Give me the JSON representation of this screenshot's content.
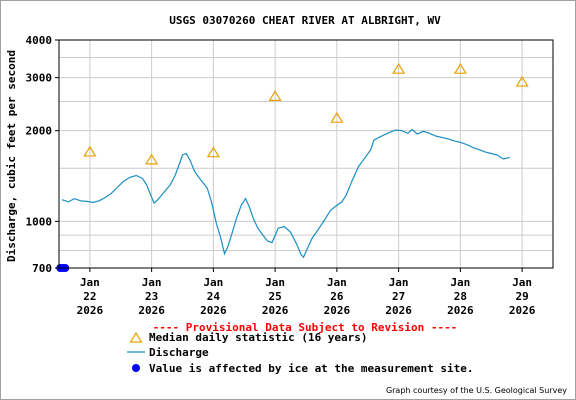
{
  "chart_data": {
    "type": "line",
    "title": "USGS 03070260 CHEAT RIVER AT ALBRIGHT, WV",
    "ylabel": "Discharge, cubic feet per second",
    "xlabel": "",
    "yscale": "log",
    "ylim": [
      700,
      4000
    ],
    "xlim": [
      21.5,
      29.5
    ],
    "grid": true,
    "y_ticks": [
      {
        "value": 700,
        "label": "700"
      },
      {
        "value": 1000,
        "label": "1000"
      },
      {
        "value": 2000,
        "label": "2000"
      },
      {
        "value": 3000,
        "label": "3000"
      },
      {
        "value": 4000,
        "label": "4000"
      }
    ],
    "y_minor_gridlines": [
      800,
      900,
      1000,
      1500,
      2000,
      2500,
      3000,
      3500
    ],
    "x_ticks": [
      {
        "value": 22,
        "month": "Jan",
        "day": "22",
        "year": "2026"
      },
      {
        "value": 23,
        "month": "Jan",
        "day": "23",
        "year": "2026"
      },
      {
        "value": 24,
        "month": "Jan",
        "day": "24",
        "year": "2026"
      },
      {
        "value": 25,
        "month": "Jan",
        "day": "25",
        "year": "2026"
      },
      {
        "value": 26,
        "month": "Jan",
        "day": "26",
        "year": "2026"
      },
      {
        "value": 27,
        "month": "Jan",
        "day": "27",
        "year": "2026"
      },
      {
        "value": 28,
        "month": "Jan",
        "day": "28",
        "year": "2026"
      },
      {
        "value": 29,
        "month": "Jan",
        "day": "29",
        "year": "2026"
      }
    ],
    "series": [
      {
        "name": "Median daily statistic (16 years)",
        "kind": "marker",
        "color": "#e8a000",
        "points": [
          {
            "x": 22.0,
            "y": 1700
          },
          {
            "x": 23.0,
            "y": 1600
          },
          {
            "x": 24.0,
            "y": 1690
          },
          {
            "x": 25.0,
            "y": 2600
          },
          {
            "x": 26.0,
            "y": 2200
          },
          {
            "x": 27.0,
            "y": 3200
          },
          {
            "x": 28.0,
            "y": 3200
          },
          {
            "x": 29.0,
            "y": 2900
          }
        ]
      },
      {
        "name": "Discharge",
        "kind": "line",
        "color": "#1a8ec2",
        "points": [
          {
            "x": 21.55,
            "y": 1180
          },
          {
            "x": 21.65,
            "y": 1160
          },
          {
            "x": 21.75,
            "y": 1190
          },
          {
            "x": 21.85,
            "y": 1170
          },
          {
            "x": 21.95,
            "y": 1165
          },
          {
            "x": 22.05,
            "y": 1155
          },
          {
            "x": 22.15,
            "y": 1170
          },
          {
            "x": 22.25,
            "y": 1200
          },
          {
            "x": 22.35,
            "y": 1240
          },
          {
            "x": 22.45,
            "y": 1300
          },
          {
            "x": 22.55,
            "y": 1360
          },
          {
            "x": 22.65,
            "y": 1400
          },
          {
            "x": 22.75,
            "y": 1420
          },
          {
            "x": 22.85,
            "y": 1390
          },
          {
            "x": 22.92,
            "y": 1320
          },
          {
            "x": 22.98,
            "y": 1230
          },
          {
            "x": 23.04,
            "y": 1150
          },
          {
            "x": 23.1,
            "y": 1180
          },
          {
            "x": 23.2,
            "y": 1250
          },
          {
            "x": 23.3,
            "y": 1320
          },
          {
            "x": 23.38,
            "y": 1420
          },
          {
            "x": 23.45,
            "y": 1550
          },
          {
            "x": 23.5,
            "y": 1660
          },
          {
            "x": 23.56,
            "y": 1680
          },
          {
            "x": 23.62,
            "y": 1600
          },
          {
            "x": 23.7,
            "y": 1460
          },
          {
            "x": 23.8,
            "y": 1370
          },
          {
            "x": 23.9,
            "y": 1290
          },
          {
            "x": 23.97,
            "y": 1160
          },
          {
            "x": 24.05,
            "y": 980
          },
          {
            "x": 24.12,
            "y": 880
          },
          {
            "x": 24.18,
            "y": 780
          },
          {
            "x": 24.24,
            "y": 830
          },
          {
            "x": 24.3,
            "y": 910
          },
          {
            "x": 24.38,
            "y": 1030
          },
          {
            "x": 24.45,
            "y": 1130
          },
          {
            "x": 24.52,
            "y": 1190
          },
          {
            "x": 24.58,
            "y": 1120
          },
          {
            "x": 24.65,
            "y": 1020
          },
          {
            "x": 24.72,
            "y": 950
          },
          {
            "x": 24.8,
            "y": 900
          },
          {
            "x": 24.88,
            "y": 860
          },
          {
            "x": 24.95,
            "y": 850
          },
          {
            "x": 25.05,
            "y": 950
          },
          {
            "x": 25.15,
            "y": 960
          },
          {
            "x": 25.25,
            "y": 920
          },
          {
            "x": 25.35,
            "y": 840
          },
          {
            "x": 25.42,
            "y": 775
          },
          {
            "x": 25.46,
            "y": 760
          },
          {
            "x": 25.52,
            "y": 810
          },
          {
            "x": 25.6,
            "y": 880
          },
          {
            "x": 25.7,
            "y": 940
          },
          {
            "x": 25.8,
            "y": 1010
          },
          {
            "x": 25.9,
            "y": 1090
          },
          {
            "x": 26.0,
            "y": 1130
          },
          {
            "x": 26.08,
            "y": 1160
          },
          {
            "x": 26.15,
            "y": 1220
          },
          {
            "x": 26.25,
            "y": 1370
          },
          {
            "x": 26.35,
            "y": 1520
          },
          {
            "x": 26.45,
            "y": 1620
          },
          {
            "x": 26.55,
            "y": 1730
          },
          {
            "x": 26.6,
            "y": 1860
          },
          {
            "x": 26.68,
            "y": 1900
          },
          {
            "x": 26.75,
            "y": 1930
          },
          {
            "x": 26.85,
            "y": 1970
          },
          {
            "x": 26.95,
            "y": 2010
          },
          {
            "x": 27.05,
            "y": 2000
          },
          {
            "x": 27.15,
            "y": 1960
          },
          {
            "x": 27.22,
            "y": 2020
          },
          {
            "x": 27.3,
            "y": 1950
          },
          {
            "x": 27.4,
            "y": 1990
          },
          {
            "x": 27.5,
            "y": 1960
          },
          {
            "x": 27.6,
            "y": 1920
          },
          {
            "x": 27.7,
            "y": 1900
          },
          {
            "x": 27.8,
            "y": 1880
          },
          {
            "x": 27.9,
            "y": 1850
          },
          {
            "x": 28.0,
            "y": 1830
          },
          {
            "x": 28.1,
            "y": 1800
          },
          {
            "x": 28.2,
            "y": 1760
          },
          {
            "x": 28.3,
            "y": 1730
          },
          {
            "x": 28.4,
            "y": 1700
          },
          {
            "x": 28.5,
            "y": 1680
          },
          {
            "x": 28.6,
            "y": 1660
          },
          {
            "x": 28.65,
            "y": 1630
          },
          {
            "x": 28.7,
            "y": 1610
          },
          {
            "x": 28.75,
            "y": 1620
          },
          {
            "x": 28.8,
            "y": 1630
          }
        ]
      },
      {
        "name": "Value is affected by ice at the measurement site.",
        "kind": "ice",
        "color": "#0000ff",
        "points": [
          {
            "x": 21.52,
            "y": 700
          },
          {
            "x": 21.56,
            "y": 700
          },
          {
            "x": 21.6,
            "y": 700
          }
        ]
      }
    ],
    "annotations": {
      "provisional": "---- Provisional Data Subject to Revision ----",
      "courtesy": "Graph courtesy of the U.S. Geological Survey"
    },
    "legend_position": "bottom"
  },
  "colors": {
    "axis": "#000000",
    "grid": "#cccccc",
    "provisional": "#ff0000"
  }
}
